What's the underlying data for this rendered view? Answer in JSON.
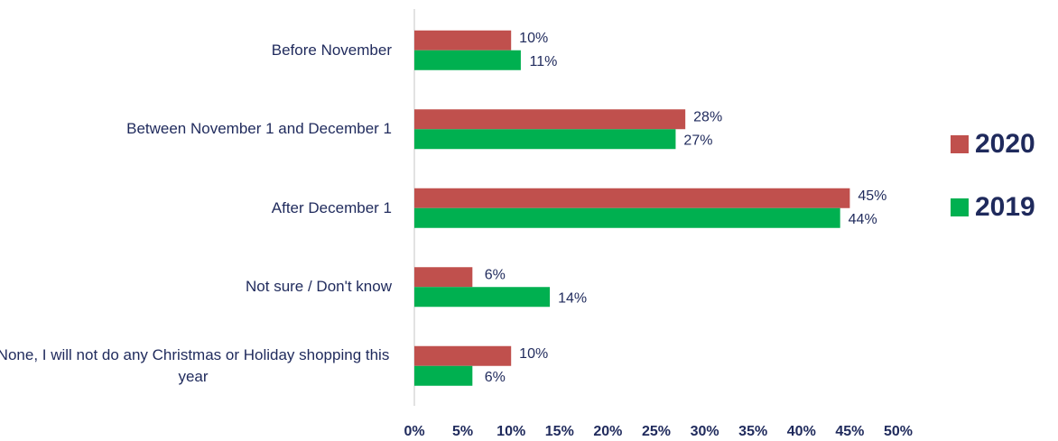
{
  "chart_data": {
    "type": "bar",
    "orientation": "horizontal",
    "categories": [
      "Before November",
      "Between November 1 and December 1",
      "After December 1",
      "Not sure / Don't know",
      "None, I will not do any Christmas or Holiday shopping this year"
    ],
    "series": [
      {
        "name": "2020",
        "color": "#c0504d",
        "values": [
          10,
          28,
          45,
          6,
          10
        ],
        "value_labels": [
          "10%",
          "28%",
          "45%",
          "6%",
          "10%"
        ]
      },
      {
        "name": "2019",
        "color": "#00b050",
        "values": [
          11,
          27,
          44,
          14,
          6
        ],
        "value_labels": [
          "11%",
          "27%",
          "44%",
          "14%",
          "6%"
        ]
      }
    ],
    "xlim": [
      0,
      50
    ],
    "xticks": [
      {
        "value": 0,
        "label": "0%"
      },
      {
        "value": 5,
        "label": "5%"
      },
      {
        "value": 10,
        "label": "10%"
      },
      {
        "value": 15,
        "label": "15%"
      },
      {
        "value": 20,
        "label": "20%"
      },
      {
        "value": 25,
        "label": "25%"
      },
      {
        "value": 30,
        "label": "30%"
      },
      {
        "value": 35,
        "label": "35%"
      },
      {
        "value": 40,
        "label": "40%"
      },
      {
        "value": 45,
        "label": "45%"
      },
      {
        "value": 50,
        "label": "50%"
      }
    ],
    "legend": "right"
  }
}
